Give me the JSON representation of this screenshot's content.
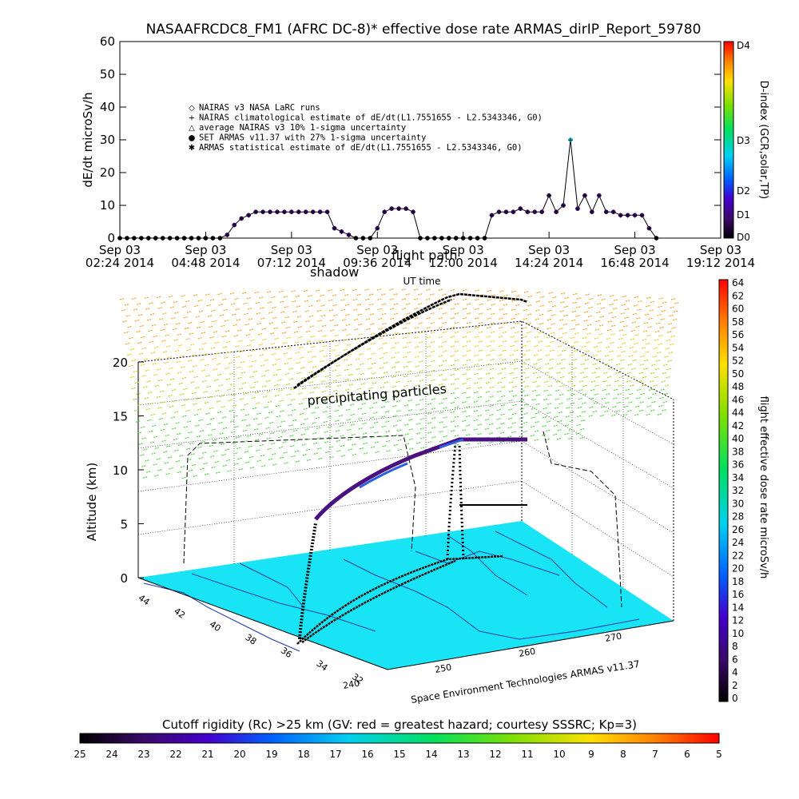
{
  "chart_data": [
    {
      "type": "scatter",
      "title": "NASAAFRCDC8_FM1 (AFRC DC-8)* effective dose rate ARMAS_dirIP_Report_59780",
      "ylabel": "dE/dt microSv/h",
      "xlabel": "UT time",
      "ylim": [
        0,
        60
      ],
      "yticks": [
        "0",
        "10",
        "20",
        "30",
        "40",
        "50",
        "60"
      ],
      "xticks": [
        {
          "top": "Sep 03",
          "bottom": "02:24 2014"
        },
        {
          "top": "Sep 03",
          "bottom": "04:48 2014"
        },
        {
          "top": "Sep 03",
          "bottom": "07:12 2014"
        },
        {
          "top": "Sep 03",
          "bottom": "09:36 2014"
        },
        {
          "top": "Sep 03",
          "bottom": "12:00 2014"
        },
        {
          "top": "Sep 03",
          "bottom": "14:24 2014"
        },
        {
          "top": "Sep 03",
          "bottom": "16:48 2014"
        },
        {
          "top": "Sep 03",
          "bottom": "19:12 2014"
        }
      ],
      "legend": [
        {
          "symbol": "◇",
          "text": "NAIRAS v3 NASA LaRC runs"
        },
        {
          "symbol": "+",
          "text": "NAIRAS climatological estimate of dE/dt(L1.7551655 - L2.5343346, G0)"
        },
        {
          "symbol": "△",
          "text": "average NAIRAS v3 10% 1-sigma uncertainty"
        },
        {
          "symbol": "●",
          "text": "SET ARMAS v11.37 with 27% 1-sigma uncertainty"
        },
        {
          "symbol": "✱",
          "text": "ARMAS statistical estimate of dE/dt(L1.7551655 - L2.5343346, G0)"
        }
      ],
      "legend_position": "top-left",
      "overlay_labels": [
        "shadow",
        "flight path"
      ],
      "series": [
        {
          "x": [
            2.4,
            2.6,
            2.8,
            3.0,
            3.2,
            3.4,
            3.6,
            3.8,
            4.0,
            4.2,
            4.4,
            4.6,
            4.8,
            5.0,
            5.2,
            5.4,
            5.6,
            5.8,
            6.0,
            6.2,
            6.4,
            6.6,
            6.8,
            7.0,
            7.2,
            7.4,
            7.6,
            7.8,
            8.0,
            8.2,
            8.4,
            8.6,
            8.8,
            9.0,
            9.2,
            9.4,
            9.6,
            9.8,
            10.0,
            10.2,
            10.4,
            10.6,
            10.8,
            11.0,
            11.2,
            11.4,
            11.6,
            11.8,
            12.0,
            12.2,
            12.4,
            12.6,
            12.8,
            13.0,
            13.2,
            13.4,
            13.6,
            13.8,
            14.0,
            14.2,
            14.4,
            14.6,
            14.8,
            15.0,
            15.2,
            15.4,
            15.6,
            15.8,
            16.0,
            16.2,
            16.4,
            16.6,
            16.8,
            17.0,
            17.2,
            17.4
          ],
          "values": [
            0,
            0,
            0,
            0,
            0,
            0,
            0,
            0,
            0,
            0,
            0,
            0,
            0,
            0,
            0,
            1,
            4,
            6,
            7,
            8,
            8,
            8,
            8,
            8,
            8,
            8,
            8,
            8,
            8,
            8,
            3,
            2,
            1,
            0,
            0,
            0,
            3,
            8,
            9,
            9,
            9,
            8,
            0,
            0,
            0,
            0,
            0,
            0,
            0,
            0,
            0,
            0,
            7,
            8,
            8,
            8,
            9,
            8,
            8,
            8,
            13,
            8,
            10,
            30,
            9,
            13,
            8,
            13,
            8,
            8,
            7,
            7,
            7,
            7,
            3,
            0
          ]
        }
      ]
    },
    {
      "type": "scatter",
      "ylabel": "Altitude (km)",
      "zticks": [
        "0",
        "5",
        "10",
        "15",
        "20"
      ],
      "lat_ticks": [
        "44",
        "42",
        "40",
        "38",
        "36",
        "34",
        "32"
      ],
      "lon_ticks": [
        "240",
        "250",
        "260",
        "270"
      ],
      "labels": {
        "particles": "precipitating particles",
        "credit": "Space Environment Technologies ARMAS v11.37"
      }
    }
  ],
  "colorbars": {
    "dindex": {
      "label": "D-index (GCR,solar,TP)",
      "ticks": [
        "D4",
        "D3",
        "D2",
        "D1",
        "D0"
      ]
    },
    "dose": {
      "label": "flight effective dose rate microSv/h",
      "ticks": [
        "64",
        "62",
        "60",
        "58",
        "56",
        "54",
        "52",
        "50",
        "48",
        "46",
        "44",
        "42",
        "40",
        "38",
        "36",
        "34",
        "32",
        "30",
        "28",
        "26",
        "24",
        "22",
        "20",
        "18",
        "16",
        "14",
        "12",
        "10",
        "8",
        "6",
        "4",
        "2",
        "0"
      ]
    },
    "cutoff": {
      "title": "Cutoff rigidity (Rc) >25 km (GV: red = greatest hazard; courtesy SSSRC; Kp=3)",
      "ticks": [
        "25",
        "24",
        "23",
        "22",
        "21",
        "20",
        "19",
        "18",
        "17",
        "16",
        "15",
        "14",
        "13",
        "12",
        "11",
        "10",
        "9",
        "8",
        "7",
        "6",
        "5"
      ]
    }
  },
  "colors": {
    "cutoff_plane": "#19e4f5",
    "dark_purple": "#3b0a5e",
    "axis": "#000000"
  }
}
